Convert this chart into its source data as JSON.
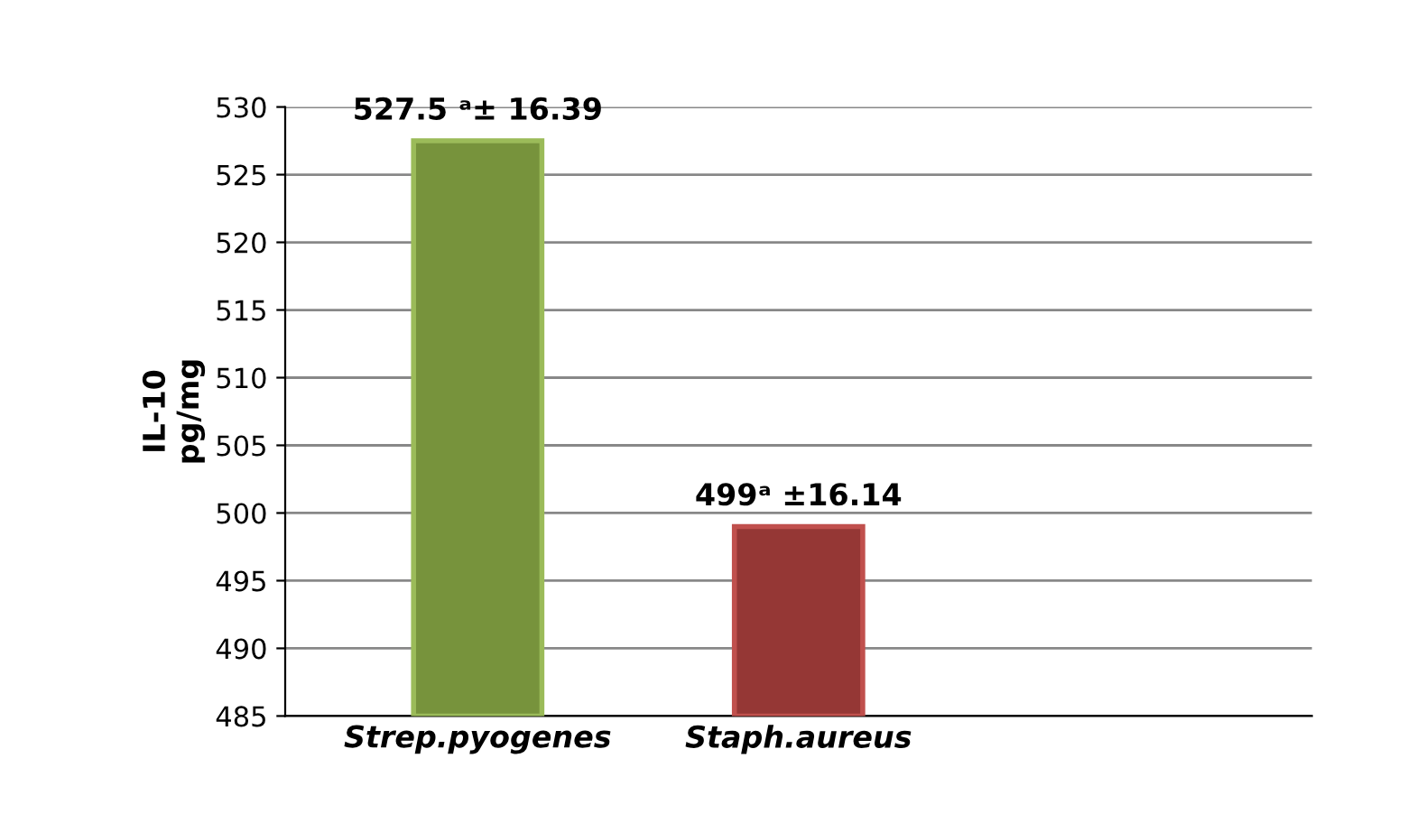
{
  "chart_data": {
    "type": "bar",
    "ylabel": "IL-10\npg/mg",
    "categories": [
      "Strep.pyogenes",
      "Staph.aureus",
      null
    ],
    "values": [
      527.5,
      499,
      null
    ],
    "colors": [
      "#77933c",
      "#953735",
      "#953735"
    ],
    "value_labels": [
      "527.5 ᵃ± 16.39",
      "499ᵃ ±16.14",
      null
    ],
    "ylim": [
      485,
      530
    ],
    "yticks": [
      485,
      490,
      495,
      500,
      505,
      510,
      515,
      520,
      525,
      530
    ],
    "grid": "y",
    "legend": false
  }
}
